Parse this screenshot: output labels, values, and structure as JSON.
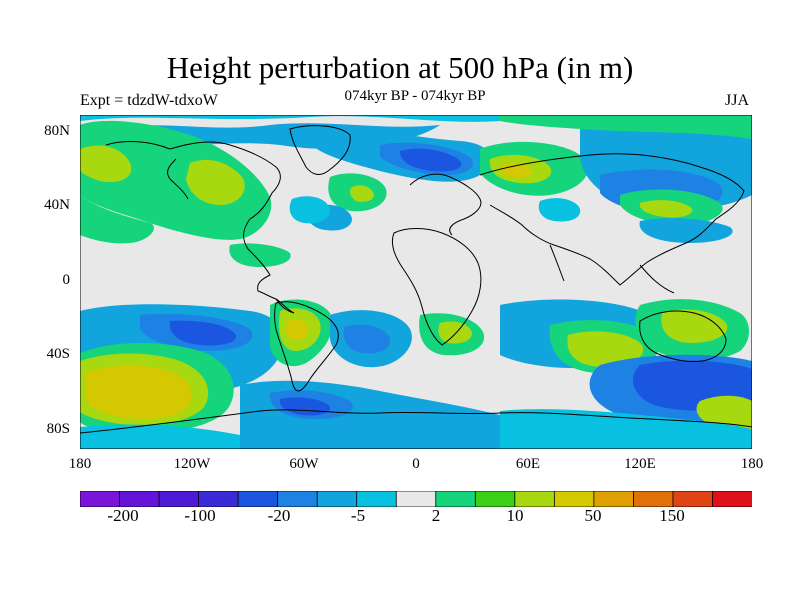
{
  "header": {
    "title": "Height perturbation at 500 hPa (in m)",
    "subtitle": "074kyr BP - 074kyr BP",
    "experiment": "Expt = tdzdW-tdxoW",
    "season": "JJA"
  },
  "axes": {
    "lat_labels": [
      "80N",
      "40N",
      "0",
      "40S",
      "80S"
    ],
    "lon_labels": [
      "180",
      "120W",
      "60W",
      "0",
      "60E",
      "120E",
      "180"
    ]
  },
  "colorbar": {
    "labels": [
      "-200",
      "-100",
      "-20",
      "-5",
      "2",
      "10",
      "50",
      "150"
    ],
    "colors": [
      "#7a14d8",
      "#6414d8",
      "#4e1ad8",
      "#3a2ad8",
      "#1a56e0",
      "#1e82e4",
      "#12a4dc",
      "#08c0e0",
      "#e8e8e8",
      "#16d47c",
      "#3ad018",
      "#a8d810",
      "#d4c800",
      "#e0a000",
      "#e07008",
      "#e04414",
      "#e01018"
    ]
  },
  "colors": {
    "background_neutral": "#e8e8e8",
    "coast": "#000000"
  }
}
